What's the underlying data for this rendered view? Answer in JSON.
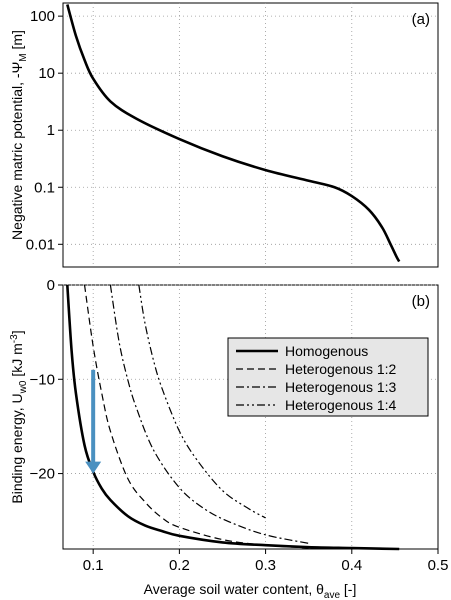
{
  "chart_data": [
    {
      "panel_label": "(a)",
      "type": "line",
      "y_scale": "log",
      "xlim": [
        0.065,
        0.5
      ],
      "ylim": [
        0.004,
        170
      ],
      "ylabel": {
        "main": "Negative matric potential, -Ψ",
        "sub": "M",
        "unit": " [m]"
      },
      "ytick_values": [
        0.01,
        0.1,
        1,
        10,
        100
      ],
      "ytick_labels": [
        "0.01",
        "0.1",
        "1",
        "10",
        "100"
      ],
      "grid": "dotted",
      "series": [
        {
          "style": "solid",
          "color": "#000000",
          "x": [
            0.07,
            0.08,
            0.09,
            0.1,
            0.12,
            0.15,
            0.2,
            0.25,
            0.3,
            0.35,
            0.38,
            0.4,
            0.42,
            0.435,
            0.445,
            0.452,
            0.455
          ],
          "y": [
            160,
            45,
            17,
            8,
            3.2,
            1.6,
            0.7,
            0.35,
            0.2,
            0.13,
            0.1,
            0.07,
            0.04,
            0.02,
            0.01,
            0.006,
            0.005
          ]
        }
      ]
    },
    {
      "panel_label": "(b)",
      "type": "line",
      "xlim": [
        0.065,
        0.5
      ],
      "ylim": [
        -28,
        0
      ],
      "xlabel": {
        "main": "Average soil water content, θ",
        "sub": "ave",
        "unit": " [-]"
      },
      "ylabel": {
        "main": "Binding energy, U",
        "sub": "w0",
        "unit": " [kJ m",
        "sup": "-3",
        "close": "]"
      },
      "xtick_values": [
        0.1,
        0.2,
        0.3,
        0.4,
        0.5
      ],
      "xtick_labels": [
        "0.1",
        "0.2",
        "0.3",
        "0.4",
        "0.5"
      ],
      "ytick_values": [
        0,
        -10,
        -20
      ],
      "ytick_labels": [
        "0",
        "−10",
        "−20"
      ],
      "grid": "dotted",
      "legend": "right",
      "series": [
        {
          "name": "Homogenous",
          "style": "solid",
          "color": "#000000",
          "x": [
            0.07,
            0.075,
            0.08,
            0.09,
            0.1,
            0.11,
            0.12,
            0.14,
            0.16,
            0.18,
            0.2,
            0.25,
            0.3,
            0.35,
            0.4,
            0.455
          ],
          "y": [
            0,
            -7,
            -11.5,
            -17,
            -19.8,
            -21.6,
            -22.8,
            -24.5,
            -25.5,
            -26.1,
            -26.6,
            -27.3,
            -27.6,
            -27.8,
            -27.9,
            -28
          ]
        },
        {
          "name": "Heterogenous 1:2",
          "style": "dashed",
          "color": "#000000",
          "x": [
            0.09,
            0.1,
            0.11,
            0.12,
            0.14,
            0.16,
            0.18,
            0.2,
            0.25,
            0.3,
            0.35
          ],
          "y": [
            0,
            -6.5,
            -11.5,
            -15.5,
            -20.5,
            -23,
            -24.7,
            -25.7,
            -27,
            -27.6,
            -27.9
          ]
        },
        {
          "name": "Heterogenous 1:3",
          "style": "dashdot",
          "color": "#000000",
          "x": [
            0.12,
            0.13,
            0.14,
            0.15,
            0.17,
            0.2,
            0.23,
            0.26,
            0.3,
            0.35
          ],
          "y": [
            0,
            -6,
            -10,
            -13,
            -17.5,
            -21.5,
            -23.8,
            -25.2,
            -26.5,
            -27.4
          ]
        },
        {
          "name": "Heterogenous 1:4",
          "style": "dashdotdot",
          "color": "#000000",
          "x": [
            0.153,
            0.16,
            0.17,
            0.18,
            0.2,
            0.22,
            0.25,
            0.28,
            0.3
          ],
          "y": [
            0,
            -4,
            -8,
            -11,
            -15.5,
            -18.5,
            -21.8,
            -23.7,
            -24.7
          ]
        }
      ],
      "annotation": {
        "type": "arrow",
        "color": "#4a90c0",
        "x": 0.1,
        "y_from": -9,
        "y_to": -20
      }
    }
  ]
}
